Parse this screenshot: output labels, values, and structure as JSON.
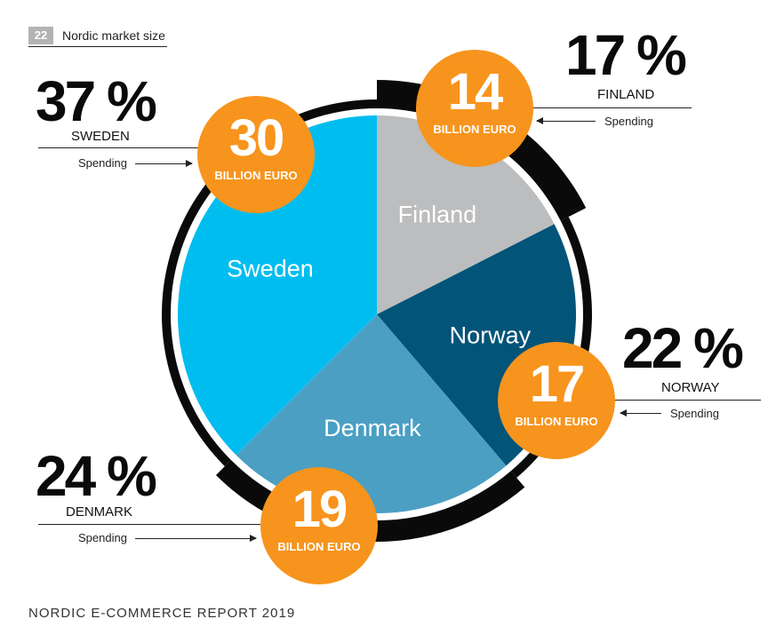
{
  "header": {
    "page_number": "22",
    "section_title": "Nordic market size"
  },
  "footer": {
    "text": "NORDIC E-COMMERCE REPORT 2019"
  },
  "chart_data": {
    "type": "pie",
    "title": "",
    "unit": "BILLION EURO",
    "slices": [
      {
        "label": "Finland",
        "country_caption": "FINLAND",
        "value": 14,
        "percent_label": "17 %",
        "spending_label": "Spending",
        "color": "#bcbdbf"
      },
      {
        "label": "Norway",
        "country_caption": "NORWAY",
        "value": 17,
        "percent_label": "22 %",
        "spending_label": "Spending",
        "color": "#025478"
      },
      {
        "label": "Denmark",
        "country_caption": "DENMARK",
        "value": 19,
        "percent_label": "24 %",
        "spending_label": "Spending",
        "color": "#4a9fc3"
      },
      {
        "label": "Sweden",
        "country_caption": "SWEDEN",
        "value": 30,
        "percent_label": "37 %",
        "spending_label": "Spending",
        "color": "#00bdf0"
      }
    ],
    "bubble_color": "#f7941d",
    "ring_color": "#0a0a0a"
  }
}
